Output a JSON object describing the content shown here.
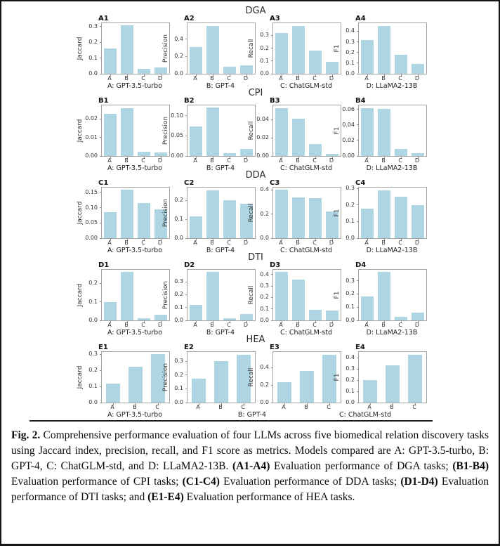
{
  "chart_data": {
    "type": "bar",
    "bar_color": "#aed6e2",
    "grid": false,
    "legend": "none",
    "rows": [
      {
        "title": "DGA",
        "panels": [
          {
            "panel": "A1",
            "ylabel": "Jaccard",
            "categories": [
              "A",
              "B",
              "C",
              "D"
            ],
            "values": [
              0.16,
              0.305,
              0.03,
              0.042
            ],
            "ytick_labels": [
              "0.0",
              "0.1",
              "0.2",
              "0.3"
            ],
            "ymax": 0.32,
            "xlabel": "A: GPT-3.5-turbo"
          },
          {
            "panel": "A2",
            "ylabel": "Precision",
            "categories": [
              "A",
              "B",
              "C",
              "D"
            ],
            "values": [
              0.31,
              0.555,
              0.085,
              0.095
            ],
            "ytick_labels": [
              "0.0",
              "0.2",
              "0.4"
            ],
            "ymax": 0.585,
            "xlabel": "B: GPT-4"
          },
          {
            "panel": "A3",
            "ylabel": "Recall",
            "categories": [
              "A",
              "B",
              "C",
              "D"
            ],
            "values": [
              0.32,
              0.375,
              0.18,
              0.095
            ],
            "ytick_labels": [
              "0.0",
              "0.1",
              "0.2",
              "0.3"
            ],
            "ymax": 0.395,
            "xlabel": "C: ChatGLM-std"
          },
          {
            "panel": "A4",
            "ylabel": "F1",
            "categories": [
              "A",
              "B",
              "C",
              "D"
            ],
            "values": [
              0.315,
              0.45,
              0.18,
              0.095
            ],
            "ytick_labels": [
              "0.0",
              "0.1",
              "0.2",
              "0.3",
              "0.4"
            ],
            "ymax": 0.475,
            "xlabel": "D: LLaMA2-13B"
          }
        ]
      },
      {
        "title": "CPI",
        "panels": [
          {
            "panel": "B1",
            "ylabel": "Jaccard",
            "categories": [
              "A",
              "B",
              "C",
              "D"
            ],
            "values": [
              0.023,
              0.026,
              0.0023,
              0.0019
            ],
            "ytick_labels": [
              "0.00",
              "0.01",
              "0.02"
            ],
            "ymax": 0.0274,
            "xlabel": "A: GPT-3.5-turbo"
          },
          {
            "panel": "B2",
            "ylabel": "Precision",
            "categories": [
              "A",
              "B",
              "C",
              "D"
            ],
            "values": [
              0.073,
              0.12,
              0.007,
              0.018
            ],
            "ytick_labels": [
              "0.00",
              "0.05",
              "0.10"
            ],
            "ymax": 0.126,
            "xlabel": "B: GPT-4"
          },
          {
            "panel": "B3",
            "ylabel": "Recall",
            "categories": [
              "A",
              "B",
              "C",
              "D"
            ],
            "values": [
              0.053,
              0.041,
              0.013,
              0.002
            ],
            "ytick_labels": [
              "0.00",
              "0.02",
              "0.04"
            ],
            "ymax": 0.0557,
            "xlabel": "C: ChatGLM-std"
          },
          {
            "panel": "B4",
            "ylabel": "F1",
            "categories": [
              "A",
              "B",
              "C",
              "D"
            ],
            "values": [
              0.062,
              0.061,
              0.009,
              0.004
            ],
            "ytick_labels": [
              "0.00",
              "0.02",
              "0.04",
              "0.06"
            ],
            "ymax": 0.0652,
            "xlabel": "D: LLaMA2-13B"
          }
        ]
      },
      {
        "title": "DDA",
        "panels": [
          {
            "panel": "C1",
            "ylabel": "Jaccard",
            "categories": [
              "A",
              "B",
              "C",
              "D"
            ],
            "values": [
              0.085,
              0.158,
              0.115,
              0.095
            ],
            "ytick_labels": [
              "0.00",
              "0.05",
              "0.10",
              "0.15"
            ],
            "ymax": 0.166,
            "xlabel": "A: GPT-3.5-turbo"
          },
          {
            "panel": "C2",
            "ylabel": "Precision",
            "categories": [
              "A",
              "B",
              "C",
              "D"
            ],
            "values": [
              0.115,
              0.255,
              0.202,
              0.182
            ],
            "ytick_labels": [
              "0.0",
              "0.1",
              "0.2"
            ],
            "ymax": 0.268,
            "xlabel": "B: GPT-4"
          },
          {
            "panel": "C3",
            "ylabel": "Recall",
            "categories": [
              "A",
              "B",
              "C",
              "D"
            ],
            "values": [
              0.4,
              0.34,
              0.33,
              0.22
            ],
            "ytick_labels": [
              "0.0",
              "0.2",
              "0.4"
            ],
            "ymax": 0.42,
            "xlabel": "C: ChatGLM-std"
          },
          {
            "panel": "C4",
            "ylabel": "F1",
            "categories": [
              "A",
              "B",
              "C",
              "D"
            ],
            "values": [
              0.18,
              0.29,
              0.25,
              0.2
            ],
            "ytick_labels": [
              "0.0",
              "0.1",
              "0.2",
              "0.3"
            ],
            "ymax": 0.305,
            "xlabel": "D: LLaMA2-13B"
          }
        ]
      },
      {
        "title": "DTI",
        "panels": [
          {
            "panel": "D1",
            "ylabel": "Jaccard",
            "categories": [
              "A",
              "B",
              "C",
              "D"
            ],
            "values": [
              0.098,
              0.26,
              0.01,
              0.03
            ],
            "ytick_labels": [
              "0.0",
              "0.1",
              "0.2"
            ],
            "ymax": 0.273,
            "xlabel": "A: GPT-3.5-turbo"
          },
          {
            "panel": "D2",
            "ylabel": "Precision",
            "categories": [
              "A",
              "B",
              "C",
              "D"
            ],
            "values": [
              0.12,
              0.375,
              0.015,
              0.05
            ],
            "ytick_labels": [
              "0.0",
              "0.1",
              "0.2",
              "0.3"
            ],
            "ymax": 0.394,
            "xlabel": "B: GPT-4"
          },
          {
            "panel": "D3",
            "ylabel": "Recall",
            "categories": [
              "A",
              "B",
              "C",
              "D"
            ],
            "values": [
              0.42,
              0.355,
              0.09,
              0.085
            ],
            "ytick_labels": [
              "0.0",
              "0.1",
              "0.2",
              "0.3",
              "0.4"
            ],
            "ymax": 0.441,
            "xlabel": "C: ChatGLM-std"
          },
          {
            "panel": "D4",
            "ylabel": "F1",
            "categories": [
              "A",
              "B",
              "C",
              "D"
            ],
            "values": [
              0.18,
              0.365,
              0.025,
              0.06
            ],
            "ytick_labels": [
              "0.0",
              "0.1",
              "0.2",
              "0.3"
            ],
            "ymax": 0.383,
            "xlabel": "D: LLaMA2-13B"
          }
        ]
      },
      {
        "title": "HEA",
        "panels": [
          {
            "panel": "E1",
            "ylabel": "Jaccard",
            "categories": [
              "A",
              "B",
              "C"
            ],
            "values": [
              0.12,
              0.225,
              0.3
            ],
            "ytick_labels": [
              "0.0",
              "0.1",
              "0.2",
              "0.3"
            ],
            "ymax": 0.315,
            "xlabel": "A: GPT-3.5-turbo"
          },
          {
            "panel": "E2",
            "ylabel": "Precision",
            "categories": [
              "A",
              "B",
              "C"
            ],
            "values": [
              0.175,
              0.3,
              0.35
            ],
            "ytick_labels": [
              "0.0",
              "0.1",
              "0.2",
              "0.3"
            ],
            "ymax": 0.368,
            "xlabel": "B: GPT-4",
            "xlabel_shift": 45
          },
          {
            "panel": "E3",
            "ylabel": "Recall",
            "categories": [
              "A",
              "B",
              "C"
            ],
            "values": [
              0.235,
              0.365,
              0.55
            ],
            "ytick_labels": [
              "0.0",
              "0.2",
              "0.4"
            ],
            "ymax": 0.578,
            "xlabel": ""
          },
          {
            "panel": "E4",
            "ylabel": "F1",
            "categories": [
              "A",
              "B",
              "C"
            ],
            "values": [
              0.2,
              0.33,
              0.43
            ],
            "ytick_labels": [
              "0.0",
              "0.1",
              "0.2",
              "0.3",
              "0.4"
            ],
            "ymax": 0.452,
            "xlabel": "C: ChatGLM-std",
            "xlabel_shift": -38
          }
        ]
      }
    ]
  },
  "caption": {
    "segments": [
      {
        "text": "Fig. 2.",
        "bold": true
      },
      {
        "text": " Comprehensive performance evaluation of four LLMs across five biomedical relation discovery tasks using Jaccard index, precision, recall, and F1 score as metrics. Models compared are A: GPT-3.5-turbo, B: GPT-4, C: ChatGLM-std, and D: LLaMA2-13B. ",
        "bold": false
      },
      {
        "text": "(A1-A4)",
        "bold": true
      },
      {
        "text": " Evaluation performance of DGA tasks; ",
        "bold": false
      },
      {
        "text": "(B1-B4)",
        "bold": true
      },
      {
        "text": " Evaluation performance of CPI tasks; ",
        "bold": false
      },
      {
        "text": "(C1-C4)",
        "bold": true
      },
      {
        "text": " Evaluation performance of DDA tasks; ",
        "bold": false
      },
      {
        "text": "(D1-D4)",
        "bold": true
      },
      {
        "text": " Evaluation performance of DTI tasks; and ",
        "bold": false
      },
      {
        "text": "(E1-E4)",
        "bold": true
      },
      {
        "text": " Evaluation performance of HEA tasks.",
        "bold": false
      }
    ]
  }
}
